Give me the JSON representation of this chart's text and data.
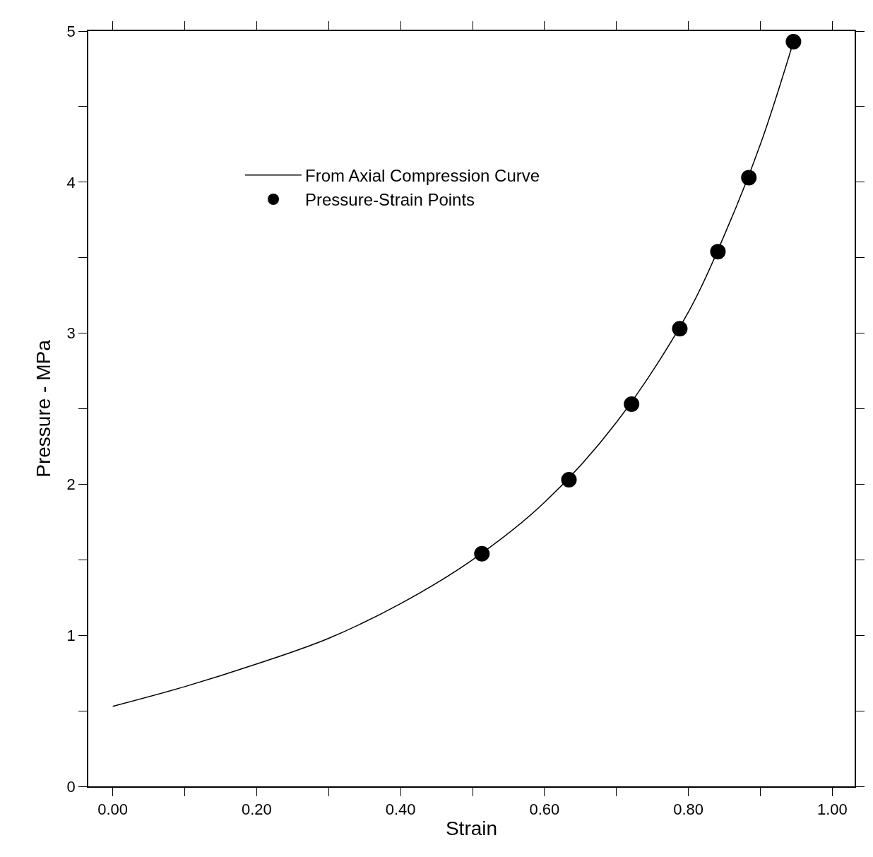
{
  "chart_data": {
    "type": "line",
    "xlabel": "Strain",
    "ylabel": "Pressure - MPa",
    "xlim": [
      -0.034,
      1.031
    ],
    "ylim": [
      0,
      5
    ],
    "xticks": [
      {
        "value": 0,
        "label": "0.00"
      },
      {
        "value": 0.1,
        "label": null
      },
      {
        "value": 0.2,
        "label": "0.20"
      },
      {
        "value": 0.3,
        "label": null
      },
      {
        "value": 0.4,
        "label": "0.40"
      },
      {
        "value": 0.5,
        "label": null
      },
      {
        "value": 0.6,
        "label": "0.60"
      },
      {
        "value": 0.7,
        "label": null
      },
      {
        "value": 0.8,
        "label": "0.80"
      },
      {
        "value": 0.9,
        "label": null
      },
      {
        "value": 1,
        "label": "1.00"
      }
    ],
    "yticks": [
      0,
      {
        "value": 0.5,
        "label": null
      },
      1,
      {
        "value": 1.5,
        "label": null
      },
      2,
      {
        "value": 2.5,
        "label": null
      },
      3,
      {
        "value": 3.5,
        "label": null
      },
      4,
      {
        "value": 4.5,
        "label": null
      },
      5
    ],
    "legend": "top left",
    "series": [
      {
        "name": "From Axial Compression Curve",
        "color": "#000000",
        "marker": "none",
        "line_style": "solid",
        "x": [
          0.0,
          0.1,
          0.2,
          0.3,
          0.4,
          0.5,
          0.6,
          0.7,
          0.8,
          0.85,
          0.9,
          0.946
        ],
        "values": [
          0.53,
          0.66,
          0.81,
          0.98,
          1.21,
          1.5,
          1.88,
          2.41,
          3.14,
          3.65,
          4.25,
          4.93
        ]
      },
      {
        "name": "Pressure-Strain Points",
        "type": "scatter",
        "color": "#000000",
        "marker": "circle",
        "x": [
          0.513,
          0.634,
          0.721,
          0.788,
          0.841,
          0.884,
          0.946
        ],
        "values": [
          1.54,
          2.03,
          2.53,
          3.03,
          3.54,
          4.03,
          4.93
        ]
      }
    ]
  }
}
